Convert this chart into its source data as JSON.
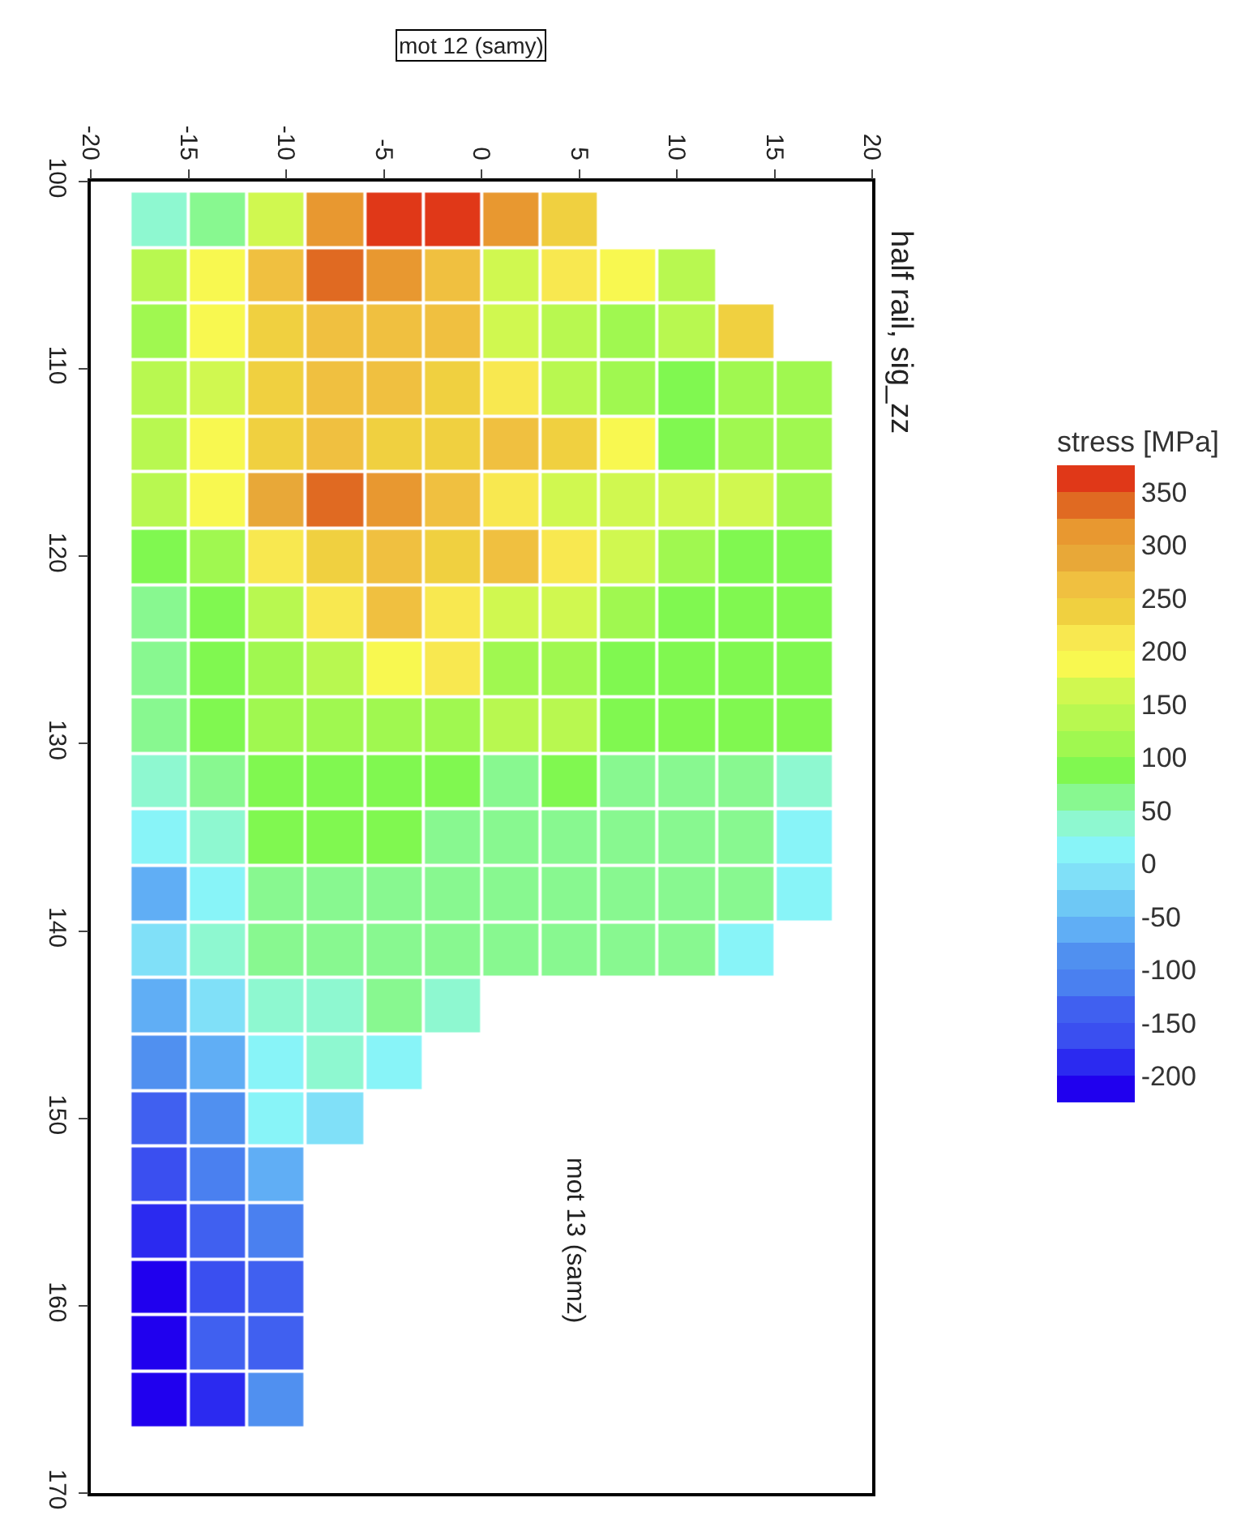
{
  "chart_data": {
    "type": "heatmap",
    "title": "half rail, sig_zz",
    "xlabel": "mot 12 (samy)",
    "ylabel": "mot 13 (samz)",
    "clabel": "stress [MPa]",
    "x": [
      -16.5,
      -13.5,
      -10.5,
      -7.5,
      -4.5,
      -1.5,
      1.5,
      4.5,
      7.5,
      10.5,
      13.5,
      16.5
    ],
    "y": [
      102,
      105,
      108,
      111,
      114,
      117,
      120,
      123,
      126,
      129,
      132,
      135,
      138,
      141,
      144,
      147,
      150,
      153,
      156,
      159,
      162,
      165
    ],
    "cells": [
      [
        40,
        70,
        150,
        320,
        350,
        350,
        320,
        225,
        null,
        null,
        null,
        null
      ],
      [
        130,
        190,
        265,
        330,
        315,
        250,
        170,
        200,
        190,
        135,
        null,
        null
      ],
      [
        115,
        185,
        230,
        255,
        265,
        255,
        160,
        125,
        105,
        130,
        235,
        null
      ],
      [
        125,
        155,
        245,
        250,
        250,
        245,
        200,
        135,
        105,
        90,
        100,
        110
      ],
      [
        125,
        175,
        245,
        250,
        225,
        230,
        260,
        245,
        190,
        95,
        100,
        120
      ],
      [
        125,
        180,
        285,
        330,
        300,
        265,
        220,
        155,
        155,
        150,
        160,
        115
      ],
      [
        85,
        120,
        220,
        240,
        260,
        235,
        255,
        210,
        155,
        115,
        95,
        90
      ],
      [
        70,
        80,
        130,
        220,
        250,
        205,
        160,
        155,
        100,
        85,
        80,
        75
      ],
      [
        70,
        75,
        110,
        140,
        185,
        200,
        120,
        105,
        90,
        85,
        80,
        80
      ],
      [
        70,
        75,
        105,
        110,
        110,
        115,
        125,
        130,
        90,
        80,
        80,
        80
      ],
      [
        40,
        55,
        80,
        80,
        80,
        75,
        70,
        75,
        70,
        70,
        70,
        40
      ],
      [
        10,
        35,
        75,
        75,
        75,
        70,
        70,
        70,
        70,
        70,
        70,
        15
      ],
      [
        -60,
        20,
        70,
        70,
        70,
        70,
        70,
        70,
        70,
        70,
        70,
        20
      ],
      [
        -15,
        25,
        55,
        70,
        70,
        70,
        70,
        70,
        70,
        70,
        15,
        null
      ],
      [
        -70,
        -5,
        30,
        45,
        55,
        40,
        null,
        null,
        null,
        null,
        null,
        null
      ],
      [
        -80,
        -70,
        20,
        45,
        20,
        null,
        null,
        null,
        null,
        null,
        null,
        null
      ],
      [
        -140,
        -90,
        15,
        -10,
        null,
        null,
        null,
        null,
        null,
        null,
        null,
        null
      ],
      [
        -165,
        -115,
        -60,
        null,
        null,
        null,
        null,
        null,
        null,
        null,
        null,
        null
      ],
      [
        -190,
        -140,
        -120,
        null,
        null,
        null,
        null,
        null,
        null,
        null,
        null,
        null
      ],
      [
        -215,
        -170,
        -135,
        null,
        null,
        null,
        null,
        null,
        null,
        null,
        null,
        null
      ],
      [
        -215,
        -150,
        -150,
        null,
        null,
        null,
        null,
        null,
        null,
        null,
        null,
        null
      ],
      [
        -215,
        -185,
        -100,
        null,
        null,
        null,
        null,
        null,
        null,
        null,
        null,
        null
      ]
    ],
    "clim": [
      -225,
      375
    ],
    "cticks": [
      -200,
      -150,
      -100,
      -50,
      0,
      50,
      100,
      150,
      200,
      250,
      300,
      350
    ],
    "colors": [
      "#2000ee",
      "#2b2af0",
      "#3a4ff0",
      "#4060f0",
      "#4a80f0",
      "#5090f0",
      "#60aef5",
      "#6ec8f5",
      "#80e0f8",
      "#88f4f8",
      "#8ef8d0",
      "#88f890",
      "#80f850",
      "#a0f850",
      "#b8f850",
      "#d0f850",
      "#f8f850",
      "#f8e850",
      "#f0d040",
      "#f0c040",
      "#e8a838",
      "#e89830",
      "#e06a22",
      "#e03818"
    ],
    "xlim": [
      -20,
      20
    ],
    "xticks": [
      -20,
      -15,
      -10,
      -5,
      0,
      5,
      10,
      15,
      20
    ],
    "ylim": [
      170,
      100
    ],
    "yticks": [
      100,
      110,
      120,
      130,
      140,
      150,
      160,
      170
    ]
  }
}
